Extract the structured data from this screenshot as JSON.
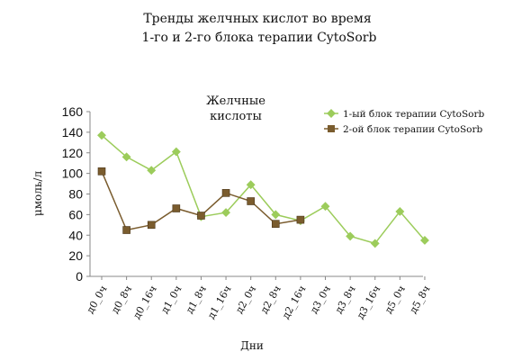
{
  "chart_data": {
    "type": "line",
    "title_lines": [
      "Тренды желчных кислот во время",
      "1-го и 2-го блока терапии CytoSorb"
    ],
    "subtitle_lines": [
      "Желчные",
      "кислоты"
    ],
    "xlabel": "Дни",
    "ylabel": "μмоль/л",
    "ylim": [
      0,
      160
    ],
    "yticks": [
      0,
      20,
      40,
      60,
      80,
      100,
      120,
      140,
      160
    ],
    "grid": false,
    "legend_position": "top-right",
    "categories": [
      "д0_0ч",
      "д0_8ч",
      "д0_16ч",
      "д1_0ч",
      "д1_8ч",
      "д1_16ч",
      "д2_0ч",
      "д2_8ч",
      "д2_16ч",
      "д3_0ч",
      "д3_8ч",
      "д3_16ч",
      "д5_0ч",
      "д5_8ч"
    ],
    "series": [
      {
        "name": "1-ый блок терапии CytoSorb",
        "color": "#9ccc5b",
        "marker": "diamond",
        "values": [
          137,
          116,
          103,
          121,
          58,
          62,
          89,
          60,
          54,
          68,
          39,
          32,
          63,
          35
        ]
      },
      {
        "name": "2-ой блок терапии CytoSorb",
        "color": "#7a5c2e",
        "marker": "square",
        "values": [
          102,
          45,
          50,
          66,
          59,
          81,
          73,
          51,
          55,
          null,
          null,
          null,
          null,
          null
        ]
      }
    ]
  }
}
